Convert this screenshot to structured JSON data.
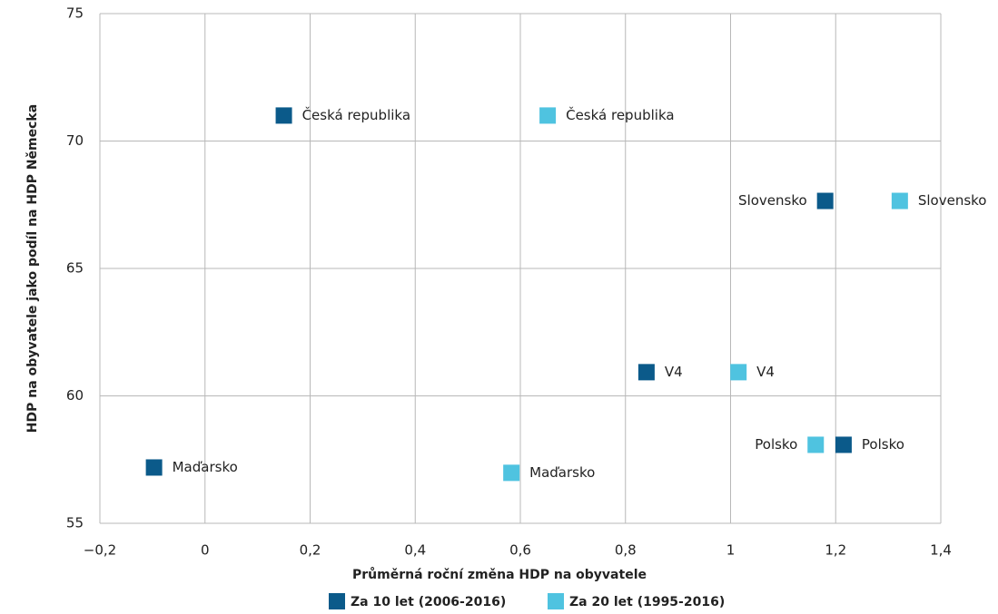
{
  "chart_data": {
    "type": "scatter",
    "xlabel": "Průměrná roční změna HDP na obyvatele",
    "ylabel": "HDP na obyvatele jako podíl na HDP Německa",
    "xlim": [
      -0.2,
      1.4
    ],
    "ylim": [
      55,
      75
    ],
    "xticks": [
      {
        "value": -0.2,
        "label": "−0,2"
      },
      0,
      {
        "value": 0.2,
        "label": "0,2"
      },
      {
        "value": 0.4,
        "label": "0,4"
      },
      {
        "value": 0.6,
        "label": "0,6"
      },
      {
        "value": 0.8,
        "label": "0,8"
      },
      1,
      {
        "value": 1.2,
        "label": "1,2"
      },
      {
        "value": 1.4,
        "label": "1,4"
      }
    ],
    "yticks": [
      55,
      60,
      65,
      70,
      75
    ],
    "grid": true,
    "legend": "bottom",
    "series": [
      {
        "name": "Za 10 let (2006-2016)",
        "color": "#0b5a8a",
        "labels": [
          "Česká republika",
          "Slovensko",
          "V4",
          "Polsko",
          "Maďarsko"
        ],
        "x": [
          0.15,
          1.18,
          0.84,
          1.215,
          -0.097
        ],
        "values": [
          71.0,
          67.65,
          60.93,
          58.08,
          57.19
        ]
      },
      {
        "name": "Za 20 let (1995-2016)",
        "color": "#4fc3e0",
        "labels": [
          "Česká republika",
          "Slovensko",
          "V4",
          "Polsko",
          "Maďarsko"
        ],
        "x": [
          0.652,
          1.322,
          1.015,
          1.162,
          0.583
        ],
        "values": [
          71.0,
          67.65,
          60.93,
          58.08,
          56.98
        ]
      }
    ]
  }
}
